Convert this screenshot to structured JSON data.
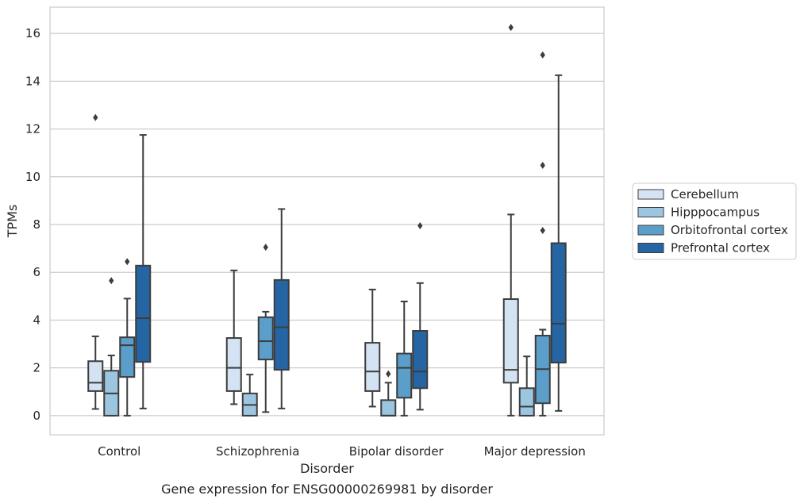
{
  "chart_data": {
    "type": "box",
    "title": "",
    "caption": "Gene expression for ENSG00000269981 by disorder",
    "xlabel": "Disorder",
    "ylabel": "TPMs",
    "ylim": [
      -0.8,
      17.1
    ],
    "yticks": [
      0,
      2,
      4,
      6,
      8,
      10,
      12,
      14,
      16
    ],
    "grid": true,
    "legend_position": "right",
    "categories": [
      "Control",
      "Schizophrenia",
      "Bipolar disorder",
      "Major depression"
    ],
    "series": [
      {
        "name": "Cerebellum",
        "color": "#d3e3f3",
        "boxes": [
          {
            "whislo": 0.28,
            "q1": 1.03,
            "med": 1.38,
            "q3": 2.28,
            "whishi": 3.32,
            "fliers": [
              12.48
            ]
          },
          {
            "whislo": 0.48,
            "q1": 1.03,
            "med": 2.0,
            "q3": 3.25,
            "whishi": 6.08,
            "fliers": []
          },
          {
            "whislo": 0.38,
            "q1": 1.03,
            "med": 1.85,
            "q3": 3.05,
            "whishi": 5.28,
            "fliers": []
          },
          {
            "whislo": 0.0,
            "q1": 1.38,
            "med": 1.92,
            "q3": 4.88,
            "whishi": 8.42,
            "fliers": [
              16.25
            ]
          }
        ]
      },
      {
        "name": "Hipppocampus",
        "color": "#9cc6e0",
        "boxes": [
          {
            "whislo": 0.0,
            "q1": 0.0,
            "med": 0.93,
            "q3": 1.88,
            "whishi": 2.52,
            "fliers": [
              5.65
            ]
          },
          {
            "whislo": 0.0,
            "q1": 0.0,
            "med": 0.45,
            "q3": 0.93,
            "whishi": 1.72,
            "fliers": []
          },
          {
            "whislo": 0.0,
            "q1": 0.0,
            "med": 0.0,
            "q3": 0.65,
            "whishi": 1.38,
            "fliers": [
              1.75
            ]
          },
          {
            "whislo": 0.0,
            "q1": 0.0,
            "med": 0.38,
            "q3": 1.15,
            "whishi": 2.48,
            "fliers": []
          }
        ]
      },
      {
        "name": "Orbitofrontal cortex",
        "color": "#5a9ec9",
        "boxes": [
          {
            "whislo": 0.0,
            "q1": 1.62,
            "med": 2.95,
            "q3": 3.28,
            "whishi": 4.9,
            "fliers": [
              6.45
            ]
          },
          {
            "whislo": 0.15,
            "q1": 2.35,
            "med": 3.12,
            "q3": 4.12,
            "whishi": 4.35,
            "fliers": [
              7.05
            ]
          },
          {
            "whislo": 0.0,
            "q1": 0.75,
            "med": 2.0,
            "q3": 2.6,
            "whishi": 4.78,
            "fliers": []
          },
          {
            "whislo": 0.0,
            "q1": 0.52,
            "med": 1.95,
            "q3": 3.35,
            "whishi": 3.6,
            "fliers": [
              7.75,
              10.48,
              15.1
            ]
          }
        ]
      },
      {
        "name": "Prefrontal cortex",
        "color": "#2565a4",
        "boxes": [
          {
            "whislo": 0.3,
            "q1": 2.25,
            "med": 4.08,
            "q3": 6.28,
            "whishi": 11.75,
            "fliers": []
          },
          {
            "whislo": 0.3,
            "q1": 1.92,
            "med": 3.7,
            "q3": 5.68,
            "whishi": 8.65,
            "fliers": []
          },
          {
            "whislo": 0.25,
            "q1": 1.15,
            "med": 1.85,
            "q3": 3.55,
            "whishi": 5.55,
            "fliers": [
              7.95
            ]
          },
          {
            "whislo": 0.2,
            "q1": 2.22,
            "med": 3.85,
            "q3": 7.22,
            "whishi": 14.25,
            "fliers": []
          }
        ]
      }
    ]
  }
}
